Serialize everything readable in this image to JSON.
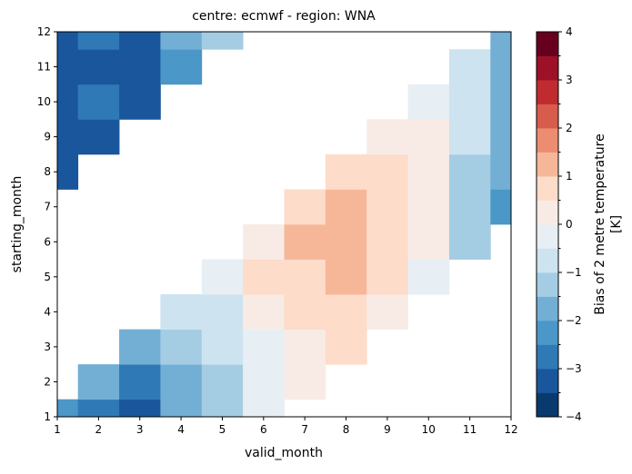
{
  "chart_data": {
    "type": "heatmap",
    "title": "centre: ecmwf - region: WNA",
    "xlabel": "valid_month",
    "ylabel": "starting_month",
    "x_ticks": [
      1,
      2,
      3,
      4,
      5,
      6,
      7,
      8,
      9,
      10,
      11,
      12
    ],
    "y_ticks": [
      1,
      2,
      3,
      4,
      5,
      6,
      7,
      8,
      9,
      10,
      11,
      12
    ],
    "xlim": [
      1,
      12
    ],
    "ylim": [
      1,
      12
    ],
    "grid": false,
    "colorbar": {
      "label_line1": "Bias of 2 metre temperature",
      "label_line2": "[K]",
      "vmin": -4,
      "vmax": 4,
      "step": 0.5,
      "tick_values": [
        -4,
        -3,
        -2,
        -1,
        0,
        1,
        2,
        3,
        4
      ],
      "tick_labels": [
        "−4",
        "−3",
        "−2",
        "−1",
        "0",
        "1",
        "2",
        "3",
        "4"
      ],
      "colors": [
        "#083a6e",
        "#1a569c",
        "#2f7ab6",
        "#4a97c8",
        "#73aed5",
        "#a4cde4",
        "#cde3ef",
        "#e7eff4",
        "#f8ebe6",
        "#fddcca",
        "#f6b799",
        "#ec8c70",
        "#d85c4c",
        "#bf2b2f",
        "#9c1127",
        "#67001f"
      ]
    },
    "cells": [
      {
        "x": 1,
        "y": 1,
        "value": -2.2
      },
      {
        "x": 2,
        "y": 1,
        "value": -2.7
      },
      {
        "x": 3,
        "y": 1,
        "value": -3.2
      },
      {
        "x": 4,
        "y": 1,
        "value": -1.7
      },
      {
        "x": 5,
        "y": 1,
        "value": -1.2
      },
      {
        "x": 6,
        "y": 1,
        "value": -0.2
      },
      {
        "x": 2,
        "y": 2,
        "value": -1.7
      },
      {
        "x": 3,
        "y": 2,
        "value": -2.7
      },
      {
        "x": 4,
        "y": 2,
        "value": -1.7
      },
      {
        "x": 5,
        "y": 2,
        "value": -1.2
      },
      {
        "x": 6,
        "y": 2,
        "value": -0.2
      },
      {
        "x": 7,
        "y": 2,
        "value": 0.2
      },
      {
        "x": 3,
        "y": 3,
        "value": -1.7
      },
      {
        "x": 4,
        "y": 3,
        "value": -1.2
      },
      {
        "x": 5,
        "y": 3,
        "value": -0.7
      },
      {
        "x": 6,
        "y": 3,
        "value": -0.2
      },
      {
        "x": 7,
        "y": 3,
        "value": 0.2
      },
      {
        "x": 8,
        "y": 3,
        "value": 0.7
      },
      {
        "x": 4,
        "y": 4,
        "value": -0.7
      },
      {
        "x": 5,
        "y": 4,
        "value": -0.7
      },
      {
        "x": 6,
        "y": 4,
        "value": 0.2
      },
      {
        "x": 7,
        "y": 4,
        "value": 0.7
      },
      {
        "x": 8,
        "y": 4,
        "value": 0.7
      },
      {
        "x": 9,
        "y": 4,
        "value": 0.2
      },
      {
        "x": 5,
        "y": 5,
        "value": -0.2
      },
      {
        "x": 6,
        "y": 5,
        "value": 0.7
      },
      {
        "x": 7,
        "y": 5,
        "value": 0.7
      },
      {
        "x": 8,
        "y": 5,
        "value": 1.2
      },
      {
        "x": 9,
        "y": 5,
        "value": 0.7
      },
      {
        "x": 10,
        "y": 5,
        "value": -0.2
      },
      {
        "x": 6,
        "y": 6,
        "value": 0.2
      },
      {
        "x": 7,
        "y": 6,
        "value": 1.2
      },
      {
        "x": 8,
        "y": 6,
        "value": 1.2
      },
      {
        "x": 9,
        "y": 6,
        "value": 0.7
      },
      {
        "x": 10,
        "y": 6,
        "value": 0.2
      },
      {
        "x": 11,
        "y": 6,
        "value": -1.2
      },
      {
        "x": 7,
        "y": 7,
        "value": 0.7
      },
      {
        "x": 8,
        "y": 7,
        "value": 1.2
      },
      {
        "x": 9,
        "y": 7,
        "value": 0.7
      },
      {
        "x": 10,
        "y": 7,
        "value": 0.2
      },
      {
        "x": 11,
        "y": 7,
        "value": -1.2
      },
      {
        "x": 12,
        "y": 7,
        "value": -2.2
      },
      {
        "x": 1,
        "y": 8,
        "value": -3.2
      },
      {
        "x": 8,
        "y": 8,
        "value": 0.7
      },
      {
        "x": 9,
        "y": 8,
        "value": 0.7
      },
      {
        "x": 10,
        "y": 8,
        "value": 0.2
      },
      {
        "x": 11,
        "y": 8,
        "value": -1.2
      },
      {
        "x": 12,
        "y": 8,
        "value": -1.7
      },
      {
        "x": 1,
        "y": 9,
        "value": -3.2
      },
      {
        "x": 2,
        "y": 9,
        "value": -3.2
      },
      {
        "x": 9,
        "y": 9,
        "value": 0.2
      },
      {
        "x": 10,
        "y": 9,
        "value": 0.2
      },
      {
        "x": 11,
        "y": 9,
        "value": -0.7
      },
      {
        "x": 12,
        "y": 9,
        "value": -1.7
      },
      {
        "x": 1,
        "y": 10,
        "value": -3.2
      },
      {
        "x": 2,
        "y": 10,
        "value": -2.7
      },
      {
        "x": 3,
        "y": 10,
        "value": -3.2
      },
      {
        "x": 10,
        "y": 10,
        "value": -0.2
      },
      {
        "x": 11,
        "y": 10,
        "value": -0.7
      },
      {
        "x": 12,
        "y": 10,
        "value": -1.7
      },
      {
        "x": 1,
        "y": 11,
        "value": -3.2
      },
      {
        "x": 2,
        "y": 11,
        "value": -3.2
      },
      {
        "x": 3,
        "y": 11,
        "value": -3.2
      },
      {
        "x": 4,
        "y": 11,
        "value": -2.2
      },
      {
        "x": 11,
        "y": 11,
        "value": -0.7
      },
      {
        "x": 12,
        "y": 11,
        "value": -1.7
      },
      {
        "x": 1,
        "y": 12,
        "value": -3.2
      },
      {
        "x": 2,
        "y": 12,
        "value": -2.7
      },
      {
        "x": 3,
        "y": 12,
        "value": -3.2
      },
      {
        "x": 4,
        "y": 12,
        "value": -1.7
      },
      {
        "x": 5,
        "y": 12,
        "value": -1.2
      },
      {
        "x": 12,
        "y": 12,
        "value": -1.7
      }
    ]
  }
}
